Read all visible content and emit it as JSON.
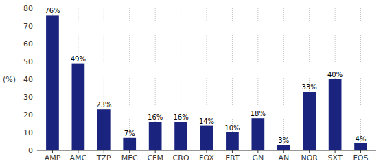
{
  "chart_data": {
    "type": "bar",
    "categories": [
      "AMP",
      "AMC",
      "TZP",
      "MEC",
      "CFM",
      "CRO",
      "FOX",
      "ERT",
      "GN",
      "AN",
      "NOR",
      "SXT",
      "FOS"
    ],
    "values": [
      76,
      49,
      23,
      7,
      16,
      16,
      14,
      10,
      18,
      3,
      33,
      40,
      4
    ],
    "value_labels": [
      "76%",
      "49%",
      "23%",
      "7%",
      "16%",
      "16%",
      "14%",
      "10%",
      "18%",
      "3%",
      "33%",
      "40%",
      "4%"
    ],
    "data_labels": true,
    "color": "#1a237e",
    "ylabel": "(%)",
    "ylim": [
      0,
      80
    ],
    "yticks": [
      0,
      10,
      20,
      30,
      40,
      50,
      60,
      70,
      80
    ],
    "grid": true
  }
}
